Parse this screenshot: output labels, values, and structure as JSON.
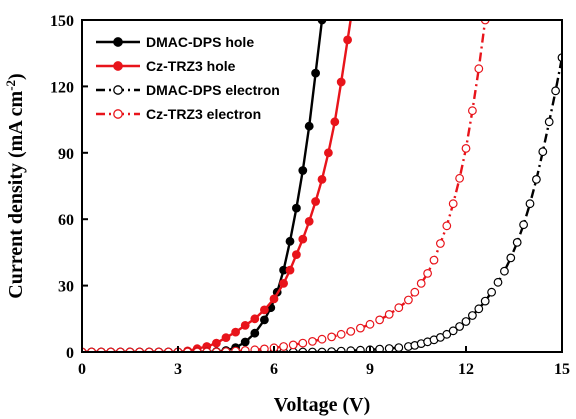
{
  "chart_data": {
    "type": "line",
    "xlabel": "Voltage (V)",
    "ylabel_main": "Current density (mA cm",
    "ylabel_sup": "-2",
    "ylabel_close": ")",
    "xlim": [
      0,
      15
    ],
    "ylim": [
      0,
      150
    ],
    "x_ticks": [
      0,
      3,
      6,
      9,
      12,
      15
    ],
    "y_ticks": [
      0,
      30,
      60,
      90,
      120,
      150
    ],
    "x_tick_labels": [
      "0",
      "3",
      "6",
      "9",
      "12",
      "15"
    ],
    "y_tick_labels": [
      "0",
      "30",
      "60",
      "90",
      "120",
      "150"
    ],
    "legend_position": "top-left",
    "series": [
      {
        "name": "DMAC-DPS hole",
        "color": "#000000",
        "marker": "filled-circle",
        "line": "solid",
        "x": [
          0,
          0.3,
          0.6,
          0.9,
          1.2,
          1.5,
          1.8,
          2.1,
          2.4,
          2.7,
          3.0,
          3.3,
          3.6,
          3.9,
          4.2,
          4.5,
          4.8,
          5.1,
          5.4,
          5.7,
          5.9,
          6.1,
          6.3,
          6.5,
          6.7,
          6.9,
          7.1,
          7.3,
          7.5,
          7.7
        ],
        "y": [
          0,
          0,
          0,
          0,
          0,
          0,
          0,
          0,
          0,
          0,
          0,
          0,
          0,
          0,
          0.2,
          0.7,
          2,
          4.5,
          8.5,
          14.5,
          20,
          27,
          37,
          50,
          65,
          82,
          102,
          126,
          150,
          170
        ]
      },
      {
        "name": "Cz-TRZ3 hole",
        "color": "#e8141b",
        "marker": "filled-circle",
        "line": "solid",
        "x": [
          0,
          0.3,
          0.6,
          0.9,
          1.2,
          1.5,
          1.8,
          2.1,
          2.4,
          2.7,
          3.0,
          3.3,
          3.6,
          3.9,
          4.2,
          4.5,
          4.8,
          5.1,
          5.4,
          5.7,
          6.0,
          6.3,
          6.5,
          6.7,
          6.9,
          7.1,
          7.3,
          7.5,
          7.7,
          7.9,
          8.1,
          8.3,
          8.5,
          8.7
        ],
        "y": [
          0,
          0,
          0,
          0,
          0,
          0,
          0,
          0,
          0,
          0,
          0,
          0.5,
          1.5,
          2.5,
          4,
          6.5,
          9,
          12,
          15,
          19,
          24,
          31,
          37,
          44,
          51,
          59,
          68,
          78,
          90,
          104,
          122,
          141,
          160,
          180
        ]
      },
      {
        "name": "DMAC-DPS electron",
        "color": "#000000",
        "marker": "open-circle",
        "line": "dash-dot",
        "x": [
          0,
          0.3,
          0.6,
          0.9,
          1.2,
          1.5,
          1.8,
          2.1,
          2.4,
          2.7,
          3.0,
          3.3,
          3.6,
          3.9,
          4.2,
          4.5,
          4.8,
          5.1,
          5.4,
          5.7,
          6.0,
          6.3,
          6.6,
          6.9,
          7.2,
          7.5,
          7.8,
          8.1,
          8.4,
          8.7,
          9.0,
          9.3,
          9.6,
          9.9,
          10.2,
          10.4,
          10.6,
          10.8,
          11.0,
          11.2,
          11.4,
          11.6,
          11.8,
          12.0,
          12.2,
          12.4,
          12.6,
          12.8,
          13.0,
          13.2,
          13.4,
          13.6,
          13.8,
          14.0,
          14.2,
          14.4,
          14.6,
          14.8,
          15.0
        ],
        "y": [
          0,
          0,
          0,
          0,
          0,
          0,
          0,
          0,
          0,
          0,
          0,
          0,
          0,
          0,
          0,
          0,
          0,
          0,
          0,
          0,
          0,
          0,
          0,
          0,
          0,
          0,
          0.2,
          0.4,
          0.6,
          0.8,
          1,
          1.3,
          1.6,
          2,
          2.5,
          3,
          3.8,
          4.6,
          5.5,
          6.6,
          8,
          9.6,
          11.5,
          13.8,
          16.5,
          19.5,
          23,
          27,
          31.5,
          36.5,
          42.5,
          49.5,
          57.5,
          67,
          78,
          90.5,
          104,
          118,
          133
        ]
      },
      {
        "name": "Cz-TRZ3 electron",
        "color": "#e8141b",
        "marker": "open-circle",
        "line": "dash-dot",
        "x": [
          0,
          0.3,
          0.6,
          0.9,
          1.2,
          1.5,
          1.8,
          2.1,
          2.4,
          2.7,
          3.0,
          3.3,
          3.6,
          3.9,
          4.2,
          4.5,
          4.8,
          5.1,
          5.4,
          5.7,
          6.0,
          6.3,
          6.6,
          6.9,
          7.2,
          7.5,
          7.8,
          8.1,
          8.4,
          8.7,
          9.0,
          9.3,
          9.6,
          9.9,
          10.2,
          10.4,
          10.6,
          10.8,
          11.0,
          11.2,
          11.4,
          11.6,
          11.8,
          12.0,
          12.2,
          12.4,
          12.6
        ],
        "y": [
          0,
          0,
          0,
          0,
          0,
          0,
          0,
          0,
          0,
          0,
          0,
          0,
          0,
          0,
          0,
          0.2,
          0.4,
          0.7,
          1,
          1.4,
          1.9,
          2.5,
          3.2,
          4,
          4.8,
          5.8,
          6.8,
          8,
          9.3,
          10.8,
          12.5,
          14.5,
          17,
          20,
          23.5,
          27,
          31,
          35.5,
          41.5,
          49,
          57,
          67,
          78.5,
          92,
          109,
          128,
          150
        ]
      }
    ]
  }
}
